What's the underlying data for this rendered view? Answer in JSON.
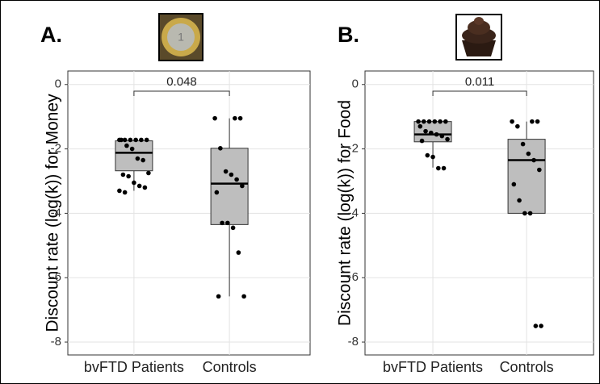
{
  "chart_data": [
    {
      "type": "box",
      "panel_label": "A.",
      "y_label": "Discount rate (log(k)) for Money",
      "categories": [
        "bvFTD Patients",
        "Controls"
      ],
      "annotation": "0.048",
      "ylim": [
        -8.4,
        0.42
      ],
      "yticks": [
        0,
        -2,
        -4,
        -6,
        -8
      ],
      "grid": true,
      "color": "#bebebe",
      "boxes": [
        {
          "min": -3.3,
          "q1": -2.68,
          "median": -2.12,
          "q3": -1.75,
          "max": -1.73
        },
        {
          "min": -6.58,
          "q1": -4.35,
          "median": -3.08,
          "q3": -1.98,
          "max": -1.05
        }
      ],
      "points": [
        [
          -1.72,
          -1.72,
          -1.72,
          -1.72,
          -1.72,
          -1.72,
          -1.72,
          -1.9,
          -2.0,
          -2.3,
          -2.35,
          -2.75,
          -2.8,
          -2.85,
          -3.05,
          -3.15,
          -3.2,
          -3.3,
          -3.35
        ],
        [
          -1.05,
          -1.05,
          -1.05,
          -1.98,
          -2.7,
          -2.8,
          -2.95,
          -3.15,
          -3.35,
          -4.3,
          -4.3,
          -4.45,
          -5.22,
          -6.58,
          -6.58
        ]
      ]
    },
    {
      "type": "box",
      "panel_label": "B.",
      "y_label": "Discount rate (log(k)) for Food",
      "categories": [
        "bvFTD Patients",
        "Controls"
      ],
      "annotation": "0.011",
      "ylim": [
        -8.4,
        0.42
      ],
      "yticks": [
        0,
        -2,
        -4,
        -6,
        -8
      ],
      "grid": true,
      "color": "#bebebe",
      "boxes": [
        {
          "min": -2.58,
          "q1": -1.78,
          "median": -1.55,
          "q3": -1.15,
          "max": -1.15
        },
        {
          "min": -4.0,
          "q1": -4.0,
          "median": -2.35,
          "q3": -1.7,
          "max": -1.15
        }
      ],
      "points": [
        [
          -1.15,
          -1.15,
          -1.15,
          -1.15,
          -1.15,
          -1.15,
          -1.3,
          -1.45,
          -1.5,
          -1.55,
          -1.6,
          -1.7,
          -1.75,
          -2.2,
          -2.25,
          -2.6,
          -2.6
        ],
        [
          -1.15,
          -1.15,
          -1.15,
          -1.3,
          -1.85,
          -2.15,
          -2.35,
          -2.65,
          -3.1,
          -3.6,
          -4.0,
          -4.0,
          -7.5,
          -7.5
        ]
      ]
    }
  ]
}
